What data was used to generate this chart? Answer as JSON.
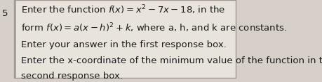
{
  "number": "5",
  "line1": "Enter the function $f(x) = x^2 - 7x - 18$, in the",
  "line2": "form $f(x) = a(x - h)^2 + k$, where a, h, and k are constants.",
  "line3": "Enter your answer in the first response box.",
  "line4": "Enter the x-coordinate of the minimum value of the function in the",
  "line5": "second response box.",
  "bg_color": "#d6d0c8",
  "box_color": "#e8e4dc",
  "text_color": "#1a1a1a",
  "border_color": "#a09890",
  "font_size": 9.5,
  "small_font_size": 8.5
}
